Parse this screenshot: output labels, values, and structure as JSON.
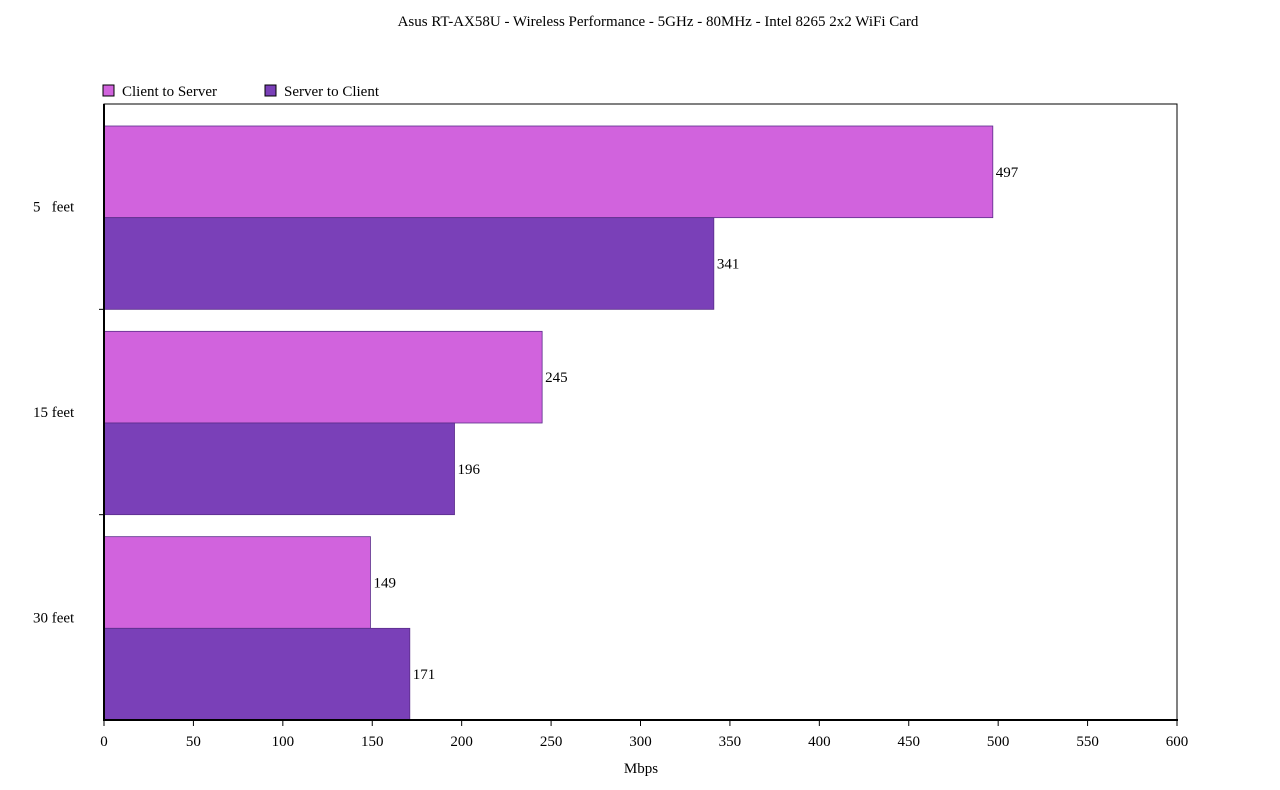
{
  "chart_data": {
    "type": "bar",
    "orientation": "horizontal",
    "title": "Asus RT-AX58U - Wireless Performance - 5GHz - 80MHz - Intel 8265 2x2 WiFi Card",
    "xlabel": "Mbps",
    "ylabel": "",
    "categories": [
      "5   feet",
      "15 feet",
      "30 feet"
    ],
    "series": [
      {
        "name": "Client to Server",
        "color": "#d163dd",
        "values": [
          497,
          245,
          149
        ]
      },
      {
        "name": "Server to Client",
        "color": "#7a40b8",
        "values": [
          341,
          196,
          171
        ]
      }
    ],
    "xlim": [
      0,
      600
    ],
    "xticks": [
      0,
      50,
      100,
      150,
      200,
      250,
      300,
      350,
      400,
      450,
      500,
      550,
      600
    ],
    "grid": false,
    "legend_position": "top-left",
    "data_labels": true
  }
}
